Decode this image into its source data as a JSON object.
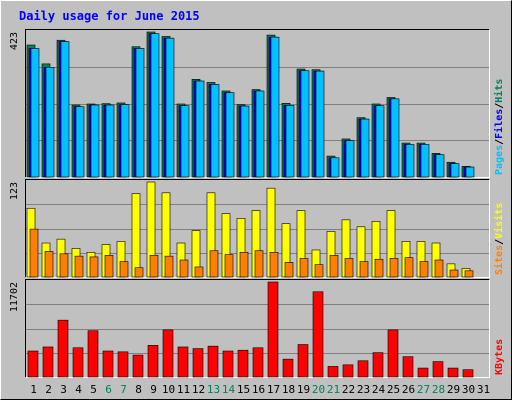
{
  "chart_data": [
    {
      "type": "bar",
      "title": "Daily usage for June 2015",
      "days": [
        "1",
        "2",
        "3",
        "4",
        "5",
        "6",
        "7",
        "8",
        "9",
        "10",
        "11",
        "12",
        "13",
        "14",
        "15",
        "16",
        "17",
        "18",
        "19",
        "20",
        "21",
        "22",
        "23",
        "24",
        "25",
        "26",
        "27",
        "28",
        "29",
        "30",
        "31"
      ],
      "weekend_days": [
        "6",
        "7",
        "13",
        "14",
        "20",
        "21",
        "27",
        "28"
      ],
      "colors": {
        "background": "#C0C0C0",
        "title": "#0000FF",
        "hits": "#00805C",
        "files": "#0000FF",
        "pages": "#00C0FF",
        "visits": "#FFFF00",
        "sites": "#FF8000",
        "kbytes": "#FF0000",
        "weekend_label": "#00805C",
        "weekday_label": "#000000"
      }
    },
    {
      "type": "bar",
      "panel": "hits-files-pages",
      "ymax_label": "423",
      "ylim": [
        0,
        423
      ],
      "legend": [
        "Pages",
        "Files",
        "Hits"
      ],
      "series": [
        {
          "name": "Hits",
          "values": [
            385,
            330,
            399,
            210,
            213,
            214,
            216,
            380,
            423,
            410,
            213,
            285,
            276,
            251,
            211,
            255,
            414,
            215,
            315,
            313,
            61,
            111,
            173,
            213,
            232,
            99,
            99,
            69,
            43,
            31,
            0
          ]
        },
        {
          "name": "Files",
          "values": [
            375,
            320,
            395,
            205,
            210,
            210,
            211,
            375,
            418,
            405,
            208,
            280,
            270,
            246,
            207,
            251,
            408,
            209,
            310,
            309,
            56,
            106,
            169,
            208,
            228,
            95,
            95,
            65,
            39,
            29,
            0
          ]
        },
        {
          "name": "Pages",
          "values": [
            375,
            320,
            395,
            205,
            210,
            210,
            211,
            375,
            418,
            405,
            208,
            280,
            270,
            246,
            207,
            251,
            408,
            209,
            310,
            309,
            56,
            106,
            169,
            208,
            228,
            95,
            95,
            65,
            39,
            29,
            0
          ]
        }
      ]
    },
    {
      "type": "bar",
      "panel": "visits-sites",
      "ymax_label": "123",
      "ylim": [
        0,
        123
      ],
      "legend": [
        "Sites",
        "Visits"
      ],
      "series": [
        {
          "name": "Visits",
          "values": [
            89,
            44,
            49,
            37,
            32,
            42,
            46,
            108,
            123,
            109,
            44,
            60,
            109,
            82,
            76,
            86,
            115,
            69,
            86,
            35,
            59,
            74,
            65,
            72,
            86,
            46,
            46,
            44,
            17,
            11,
            0
          ]
        },
        {
          "name": "Sites",
          "values": [
            62,
            33,
            30,
            27,
            26,
            28,
            20,
            12,
            28,
            27,
            22,
            13,
            34,
            29,
            32,
            34,
            32,
            19,
            24,
            16,
            28,
            24,
            20,
            23,
            24,
            25,
            20,
            22,
            9,
            8,
            0
          ]
        }
      ]
    },
    {
      "type": "bar",
      "panel": "kbytes",
      "ymax_label": "11702",
      "ylim": [
        0,
        11702
      ],
      "legend": [
        "KBytes"
      ],
      "series": [
        {
          "name": "KBytes",
          "values": [
            3200,
            3700,
            7000,
            3600,
            5700,
            3200,
            3100,
            2700,
            3900,
            5800,
            3700,
            3500,
            3800,
            3200,
            3300,
            3600,
            11702,
            2200,
            4000,
            10500,
            1300,
            1500,
            2000,
            3000,
            5800,
            2500,
            1100,
            1900,
            1100,
            900,
            0
          ]
        }
      ]
    }
  ]
}
